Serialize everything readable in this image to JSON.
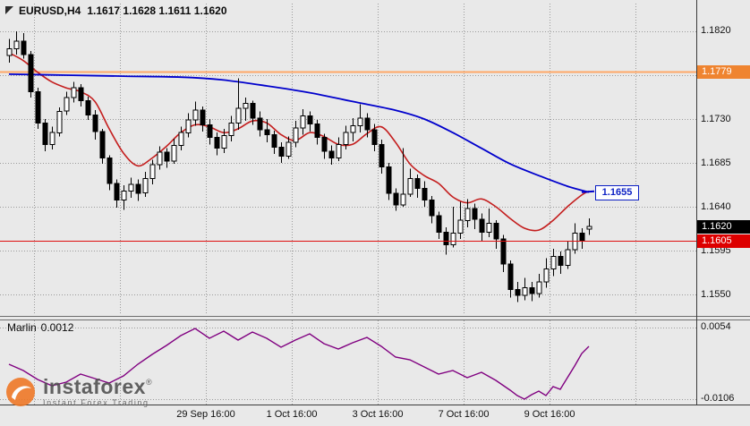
{
  "header": {
    "symbol_timeframe": "EURUSD,H4",
    "ohlc": "1.1617 1.1628 1.1611 1.1620"
  },
  "watermark": {
    "brand": "instaforex",
    "registered": "®",
    "tagline": "Instant Forex Trading"
  },
  "chart_data": {
    "type": "candlestick",
    "title": "EURUSD,H4",
    "ohlc_current": {
      "open": 1.1617,
      "high": 1.1628,
      "low": 1.1611,
      "close": 1.162
    },
    "price_axis": [
      "1.1820",
      "1.1775",
      "1.1730",
      "1.1685",
      "1.1640",
      "1.1595",
      "1.1550"
    ],
    "time_axis": [
      "29 Sep 16:00",
      "1 Oct 16:00",
      "3 Oct 16:00",
      "7 Oct 16:00",
      "9 Oct 16:00"
    ],
    "badges": {
      "resistance": "1.1779",
      "bid": "1.1620",
      "support": "1.1605",
      "ma_end": "1.1655"
    },
    "colors": {
      "background": "#e9e9e9",
      "grid": "#9a9a9a",
      "bull": "#ffffff",
      "bear": "#000000",
      "ma_blue": "#0000cc",
      "ma_red": "#c41e1e",
      "resistance_line": "#ffa866",
      "resistance_badge": "#ef8430",
      "support_line": "#e01010",
      "support_badge": "#dd0000",
      "bid_badge": "#000000",
      "ma_label_blue": "#0b1fc4",
      "indicator_line": "#800080"
    },
    "candles": [
      [
        1.1795,
        1.1812,
        1.1788,
        1.1802
      ],
      [
        1.1802,
        1.182,
        1.1796,
        1.181
      ],
      [
        1.181,
        1.1818,
        1.1792,
        1.1796
      ],
      [
        1.1796,
        1.18,
        1.1752,
        1.1758
      ],
      [
        1.1758,
        1.1762,
        1.172,
        1.1726
      ],
      [
        1.1726,
        1.173,
        1.1697,
        1.1704
      ],
      [
        1.1704,
        1.1722,
        1.1699,
        1.1716
      ],
      [
        1.1716,
        1.1742,
        1.1712,
        1.1738
      ],
      [
        1.1738,
        1.1758,
        1.1734,
        1.1752
      ],
      [
        1.1752,
        1.1768,
        1.1747,
        1.1762
      ],
      [
        1.1762,
        1.1766,
        1.1743,
        1.1749
      ],
      [
        1.1749,
        1.1753,
        1.1729,
        1.1734
      ],
      [
        1.1734,
        1.1739,
        1.1709,
        1.1717
      ],
      [
        1.1717,
        1.172,
        1.1684,
        1.169
      ],
      [
        1.169,
        1.1693,
        1.1657,
        1.1664
      ],
      [
        1.1664,
        1.1668,
        1.1639,
        1.1647
      ],
      [
        1.1647,
        1.1662,
        1.1637,
        1.1656
      ],
      [
        1.1656,
        1.167,
        1.1649,
        1.1663
      ],
      [
        1.1663,
        1.1668,
        1.1646,
        1.1654
      ],
      [
        1.1654,
        1.1676,
        1.165,
        1.1669
      ],
      [
        1.1669,
        1.1688,
        1.1663,
        1.1683
      ],
      [
        1.1683,
        1.1702,
        1.1678,
        1.1696
      ],
      [
        1.1696,
        1.17,
        1.168,
        1.1687
      ],
      [
        1.1687,
        1.171,
        1.1684,
        1.1703
      ],
      [
        1.1703,
        1.1722,
        1.1698,
        1.1716
      ],
      [
        1.1716,
        1.1736,
        1.1711,
        1.1729
      ],
      [
        1.1729,
        1.1748,
        1.1723,
        1.1739
      ],
      [
        1.1739,
        1.1743,
        1.1717,
        1.1724
      ],
      [
        1.1724,
        1.173,
        1.1704,
        1.1711
      ],
      [
        1.1711,
        1.1716,
        1.1693,
        1.17
      ],
      [
        1.17,
        1.172,
        1.1695,
        1.1713
      ],
      [
        1.1713,
        1.1733,
        1.1707,
        1.1726
      ],
      [
        1.1726,
        1.1772,
        1.1719,
        1.1741
      ],
      [
        1.1741,
        1.1752,
        1.1728,
        1.1746
      ],
      [
        1.1746,
        1.1749,
        1.1724,
        1.1731
      ],
      [
        1.1731,
        1.1738,
        1.1712,
        1.1719
      ],
      [
        1.1719,
        1.173,
        1.1706,
        1.1714
      ],
      [
        1.1714,
        1.1718,
        1.1694,
        1.1701
      ],
      [
        1.1701,
        1.1706,
        1.1685,
        1.1692
      ],
      [
        1.1692,
        1.1712,
        1.1689,
        1.1706
      ],
      [
        1.1706,
        1.1728,
        1.1701,
        1.1721
      ],
      [
        1.1721,
        1.174,
        1.1714,
        1.1733
      ],
      [
        1.1733,
        1.1738,
        1.1717,
        1.1725
      ],
      [
        1.1725,
        1.1729,
        1.1704,
        1.1711
      ],
      [
        1.1711,
        1.1715,
        1.1689,
        1.1697
      ],
      [
        1.1697,
        1.1703,
        1.1683,
        1.169
      ],
      [
        1.169,
        1.1711,
        1.1687,
        1.1704
      ],
      [
        1.1704,
        1.1723,
        1.1699,
        1.1716
      ],
      [
        1.1716,
        1.1731,
        1.1707,
        1.1723
      ],
      [
        1.1723,
        1.1745,
        1.1716,
        1.1731
      ],
      [
        1.1731,
        1.1736,
        1.1711,
        1.1719
      ],
      [
        1.1719,
        1.1725,
        1.1697,
        1.1704
      ],
      [
        1.1704,
        1.1709,
        1.1674,
        1.1681
      ],
      [
        1.1681,
        1.1685,
        1.1647,
        1.1654
      ],
      [
        1.1654,
        1.1659,
        1.1636,
        1.1642
      ],
      [
        1.1642,
        1.17,
        1.164,
        1.1653
      ],
      [
        1.1653,
        1.1679,
        1.165,
        1.1669
      ],
      [
        1.1669,
        1.1673,
        1.1649,
        1.1659
      ],
      [
        1.1659,
        1.1666,
        1.164,
        1.1647
      ],
      [
        1.1647,
        1.1651,
        1.1623,
        1.1631
      ],
      [
        1.1631,
        1.1635,
        1.1607,
        1.1614
      ],
      [
        1.1614,
        1.1619,
        1.1591,
        1.1601
      ],
      [
        1.1601,
        1.164,
        1.1598,
        1.1613
      ],
      [
        1.1613,
        1.1645,
        1.1607,
        1.1626
      ],
      [
        1.1626,
        1.1648,
        1.1619,
        1.1638
      ],
      [
        1.1638,
        1.1643,
        1.1617,
        1.1627
      ],
      [
        1.1627,
        1.1633,
        1.1605,
        1.1614
      ],
      [
        1.1614,
        1.1638,
        1.1609,
        1.1623
      ],
      [
        1.1623,
        1.1626,
        1.1597,
        1.1607
      ],
      [
        1.1607,
        1.1611,
        1.1573,
        1.1581
      ],
      [
        1.1581,
        1.1585,
        1.1547,
        1.1555
      ],
      [
        1.1555,
        1.1563,
        1.1542,
        1.1549
      ],
      [
        1.1549,
        1.1567,
        1.1544,
        1.1557
      ],
      [
        1.1557,
        1.1563,
        1.1543,
        1.1551
      ],
      [
        1.1551,
        1.1571,
        1.1547,
        1.1563
      ],
      [
        1.1563,
        1.1587,
        1.1557,
        1.1576
      ],
      [
        1.1576,
        1.1597,
        1.1569,
        1.1589
      ],
      [
        1.1589,
        1.1594,
        1.1571,
        1.158
      ],
      [
        1.158,
        1.1605,
        1.1576,
        1.1596
      ],
      [
        1.1596,
        1.1623,
        1.1592,
        1.1613
      ],
      [
        1.1613,
        1.1618,
        1.1597,
        1.1605
      ],
      [
        1.1617,
        1.1628,
        1.1611,
        1.162
      ]
    ],
    "ma_blue": [
      [
        0,
        1.1776
      ],
      [
        8,
        1.1775
      ],
      [
        16,
        1.1774
      ],
      [
        24,
        1.1773
      ],
      [
        30,
        1.177
      ],
      [
        36,
        1.1764
      ],
      [
        42,
        1.1757
      ],
      [
        48,
        1.1748
      ],
      [
        54,
        1.1739
      ],
      [
        58,
        1.173
      ],
      [
        62,
        1.1716
      ],
      [
        66,
        1.17
      ],
      [
        70,
        1.1684
      ],
      [
        74,
        1.1672
      ],
      [
        78,
        1.1661
      ],
      [
        81,
        1.1655
      ]
    ],
    "ma_red": [
      [
        0,
        1.1798
      ],
      [
        2,
        1.179
      ],
      [
        4,
        1.1778
      ],
      [
        6,
        1.1768
      ],
      [
        8,
        1.1762
      ],
      [
        10,
        1.1758
      ],
      [
        12,
        1.1748
      ],
      [
        14,
        1.172
      ],
      [
        16,
        1.1695
      ],
      [
        18,
        1.1682
      ],
      [
        20,
        1.169
      ],
      [
        22,
        1.1702
      ],
      [
        24,
        1.1716
      ],
      [
        26,
        1.1724
      ],
      [
        28,
        1.1722
      ],
      [
        30,
        1.1716
      ],
      [
        32,
        1.172
      ],
      [
        34,
        1.1728
      ],
      [
        36,
        1.1726
      ],
      [
        38,
        1.1714
      ],
      [
        40,
        1.1708
      ],
      [
        42,
        1.1716
      ],
      [
        44,
        1.1712
      ],
      [
        46,
        1.1704
      ],
      [
        48,
        1.1704
      ],
      [
        50,
        1.1715
      ],
      [
        52,
        1.1722
      ],
      [
        54,
        1.1706
      ],
      [
        56,
        1.1684
      ],
      [
        58,
        1.1672
      ],
      [
        60,
        1.1664
      ],
      [
        62,
        1.165
      ],
      [
        64,
        1.1644
      ],
      [
        66,
        1.1648
      ],
      [
        68,
        1.164
      ],
      [
        70,
        1.1628
      ],
      [
        72,
        1.1618
      ],
      [
        74,
        1.1616
      ],
      [
        76,
        1.1626
      ],
      [
        78,
        1.164
      ],
      [
        80,
        1.1652
      ],
      [
        81,
        1.1656
      ]
    ],
    "indicator": {
      "label": "Marlin",
      "value": "0.0012",
      "axis": [
        "0.0054",
        "-0.0106"
      ],
      "points": [
        [
          0,
          -0.0028
        ],
        [
          2,
          -0.0042
        ],
        [
          4,
          -0.0062
        ],
        [
          6,
          -0.0076
        ],
        [
          8,
          -0.0068
        ],
        [
          10,
          -0.005
        ],
        [
          12,
          -0.006
        ],
        [
          14,
          -0.007
        ],
        [
          16,
          -0.0054
        ],
        [
          18,
          -0.0028
        ],
        [
          20,
          -0.0006
        ],
        [
          22,
          0.0014
        ],
        [
          24,
          0.0036
        ],
        [
          26,
          0.0052
        ],
        [
          28,
          0.003
        ],
        [
          30,
          0.0046
        ],
        [
          32,
          0.0026
        ],
        [
          34,
          0.0044
        ],
        [
          36,
          0.003
        ],
        [
          38,
          0.001
        ],
        [
          40,
          0.0026
        ],
        [
          42,
          0.004
        ],
        [
          44,
          0.0018
        ],
        [
          46,
          0.0006
        ],
        [
          48,
          0.002
        ],
        [
          50,
          0.0032
        ],
        [
          52,
          0.0012
        ],
        [
          54,
          -0.0012
        ],
        [
          56,
          -0.0018
        ],
        [
          58,
          -0.0034
        ],
        [
          60,
          -0.005
        ],
        [
          62,
          -0.0042
        ],
        [
          64,
          -0.0058
        ],
        [
          66,
          -0.0046
        ],
        [
          68,
          -0.0064
        ],
        [
          70,
          -0.0086
        ],
        [
          71,
          -0.0098
        ],
        [
          72,
          -0.0106
        ],
        [
          73,
          -0.0096
        ],
        [
          74,
          -0.0088
        ],
        [
          75,
          -0.0098
        ],
        [
          76,
          -0.0078
        ],
        [
          77,
          -0.0084
        ],
        [
          78,
          -0.0058
        ],
        [
          79,
          -0.0032
        ],
        [
          80,
          -0.0004
        ],
        [
          81,
          0.0012
        ]
      ]
    }
  }
}
